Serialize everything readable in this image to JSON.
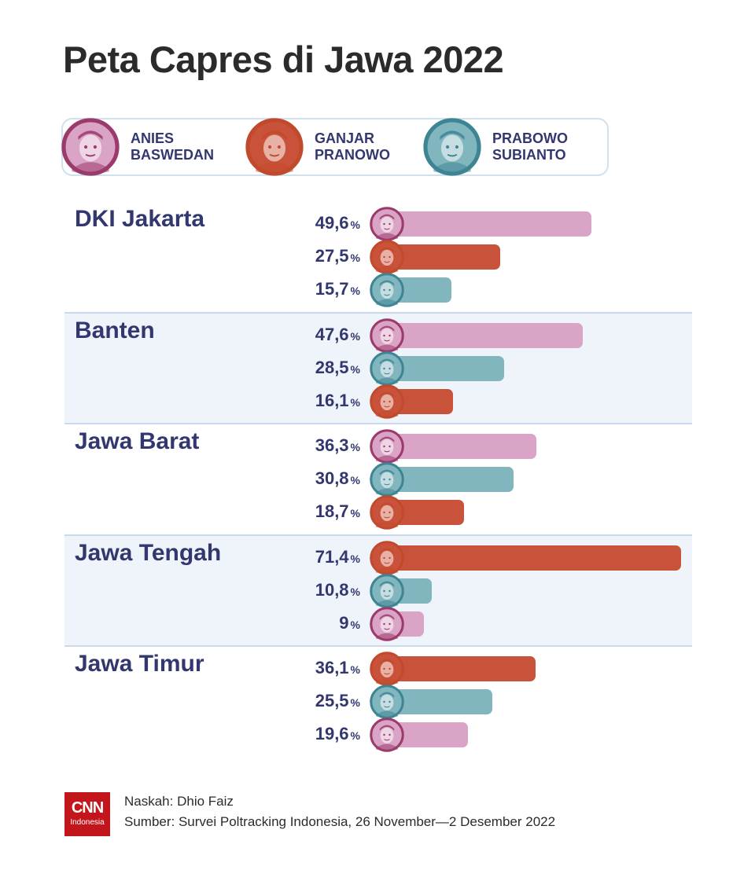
{
  "title": "Peta Capres di Jawa 2022",
  "candidates": {
    "anies": {
      "line1": "ANIES",
      "line2": "BASWEDAN",
      "color": "#d9a4c6",
      "ring": "#9c3a6c",
      "icon": "anies-portrait-icon"
    },
    "ganjar": {
      "line1": "GANJAR",
      "line2": "PRANOWO",
      "color": "#c9523a",
      "ring": "#c14a2d",
      "icon": "ganjar-portrait-icon"
    },
    "prabowo": {
      "line1": "PRABOWO",
      "line2": "SUBIANTO",
      "color": "#82b6be",
      "ring": "#3e8593",
      "icon": "prabowo-portrait-icon"
    }
  },
  "legend_order": [
    "anies",
    "ganjar",
    "prabowo"
  ],
  "chart_data": {
    "type": "bar",
    "unit": "%",
    "groups": [
      {
        "region": "DKI Jakarta",
        "bars": [
          {
            "candidate": "anies",
            "value": 49.6,
            "label": "49,6"
          },
          {
            "candidate": "ganjar",
            "value": 27.5,
            "label": "27,5"
          },
          {
            "candidate": "prabowo",
            "value": 15.7,
            "label": "15,7"
          }
        ]
      },
      {
        "region": "Banten",
        "bars": [
          {
            "candidate": "anies",
            "value": 47.6,
            "label": "47,6"
          },
          {
            "candidate": "prabowo",
            "value": 28.5,
            "label": "28,5"
          },
          {
            "candidate": "ganjar",
            "value": 16.1,
            "label": "16,1"
          }
        ]
      },
      {
        "region": "Jawa Barat",
        "bars": [
          {
            "candidate": "anies",
            "value": 36.3,
            "label": "36,3"
          },
          {
            "candidate": "prabowo",
            "value": 30.8,
            "label": "30,8"
          },
          {
            "candidate": "ganjar",
            "value": 18.7,
            "label": "18,7"
          }
        ]
      },
      {
        "region": "Jawa Tengah",
        "bars": [
          {
            "candidate": "ganjar",
            "value": 71.4,
            "label": "71,4"
          },
          {
            "candidate": "prabowo",
            "value": 10.8,
            "label": "10,8"
          },
          {
            "candidate": "anies",
            "value": 9,
            "label": "9"
          }
        ]
      },
      {
        "region": "Jawa Timur",
        "bars": [
          {
            "candidate": "ganjar",
            "value": 36.1,
            "label": "36,1"
          },
          {
            "candidate": "prabowo",
            "value": 25.5,
            "label": "25,5"
          },
          {
            "candidate": "anies",
            "value": 19.6,
            "label": "19,6"
          }
        ]
      }
    ]
  },
  "footer": {
    "logo_main": "CNN",
    "logo_sub": "Indonesia",
    "author": "Naskah: Dhio Faiz",
    "source": "Sumber: Survei Poltracking Indonesia, 26 November—2 Desember 2022"
  }
}
